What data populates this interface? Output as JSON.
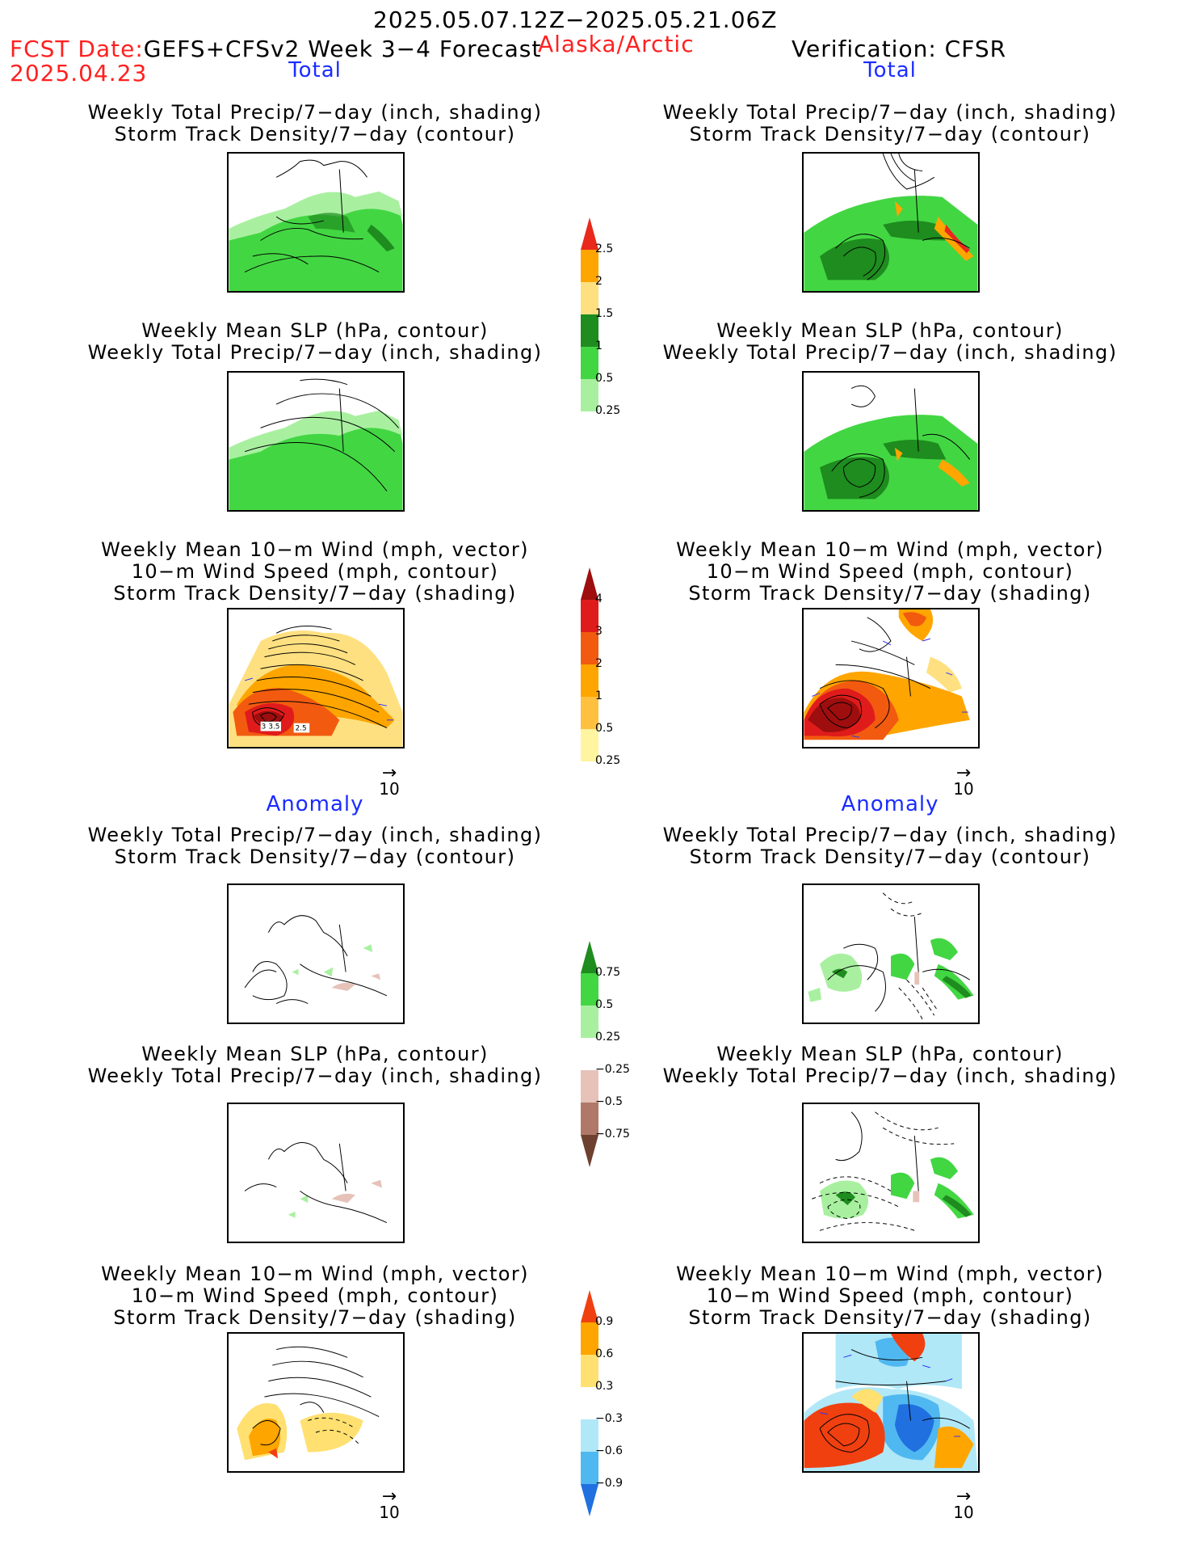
{
  "header": {
    "period": "2025.05.07.12Z−2025.05.21.06Z",
    "fcst_label": "FCST Date:",
    "fcst_model": "GEFS+CFSv2 Week 3−4 Forecast",
    "region": "Alaska/Arctic",
    "verification": "Verification: CFSR",
    "fcst_date": "2025.04.23"
  },
  "sections": {
    "total": "Total",
    "anomaly": "Anomaly"
  },
  "titles": {
    "precip_storm": [
      "Weekly Total Precip/7−day (inch, shading)",
      "Storm Track Density/7−day (contour)"
    ],
    "slp_precip": [
      "Weekly Mean SLP (hPa, contour)",
      "Weekly Total Precip/7−day (inch, shading)"
    ],
    "wind_storm": [
      "Weekly Mean 10−m Wind (mph, vector)",
      "10−m Wind Speed (mph, contour)",
      "Storm Track Density/7−day (shading)"
    ]
  },
  "ref_vector": "10",
  "contour_labels": [
    "3",
    "3.5",
    "2.5"
  ],
  "colorbars": {
    "total_precip": {
      "ticks": [
        "2.5",
        "2",
        "1.5",
        "1",
        "0.5",
        "0.25"
      ],
      "colors": [
        "#e8291b",
        "#ffa500",
        "#ffe080",
        "#1e8c1e",
        "#43d643",
        "#a8f0a0",
        "#ffffff"
      ]
    },
    "total_storm": {
      "ticks": [
        "4",
        "3",
        "2",
        "1",
        "0.5",
        "0.25"
      ],
      "colors": [
        "#9e0e0e",
        "#e01b1b",
        "#f25a10",
        "#ffa500",
        "#ffc040",
        "#fff4a0",
        "#ffffff"
      ]
    },
    "anom_precip": {
      "ticks": [
        "0.75",
        "0.5",
        "0.25",
        "−0.25",
        "−0.5",
        "−0.75"
      ],
      "colors": [
        "#1e8c1e",
        "#43d643",
        "#a8f0a0",
        "#ffffff",
        "#e6c2b8",
        "#b07868",
        "#6e4030"
      ]
    },
    "anom_storm": {
      "ticks": [
        "0.9",
        "0.6",
        "0.3",
        "−0.3",
        "−0.6",
        "−0.9"
      ],
      "colors": [
        "#f04010",
        "#ffa500",
        "#ffe070",
        "#ffffff",
        "#b0e8f8",
        "#50b8f0",
        "#2070e0"
      ]
    }
  }
}
